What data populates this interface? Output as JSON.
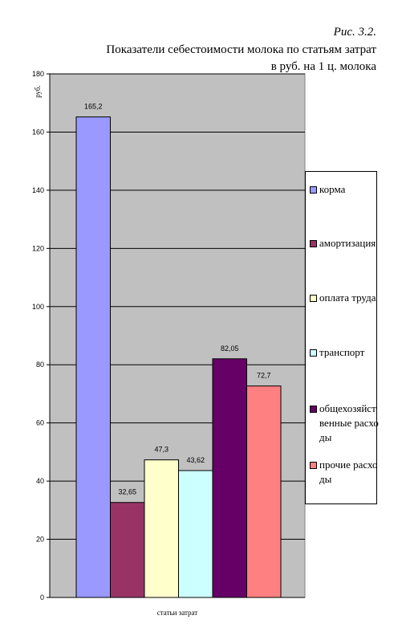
{
  "caption": "Рис. 3.2.",
  "title_line1": "Показатели себестоимости молока по статьям затрат",
  "title_line2": "в руб. на 1 ц. молока",
  "chart_data": {
    "type": "bar",
    "title": "Показатели себестоимости молока по статьям затрат в руб. на 1 ц. молока",
    "xlabel": "статьи затрат",
    "ylabel": "руб.",
    "ylim": [
      0,
      180
    ],
    "yticks": [
      0,
      20,
      40,
      60,
      80,
      100,
      120,
      140,
      160,
      180
    ],
    "grid": true,
    "legend_position": "right",
    "series": [
      {
        "name": "корма",
        "value": 165.2,
        "label": "165,2",
        "color": "#9999FF"
      },
      {
        "name": "амортизация",
        "value": 32.65,
        "label": "32,65",
        "color": "#993366"
      },
      {
        "name": "оплата труда",
        "value": 47.3,
        "label": "47,3",
        "color": "#FFFFCC"
      },
      {
        "name": "транспорт",
        "value": 43.62,
        "label": "43,62",
        "color": "#CCFFFF"
      },
      {
        "name": "общехозяйственные расходы",
        "value": 82.05,
        "label": "82,05",
        "color": "#660066"
      },
      {
        "name": "прочие расходы",
        "value": 72.7,
        "label": "72,7",
        "color": "#FF8080"
      }
    ]
  }
}
